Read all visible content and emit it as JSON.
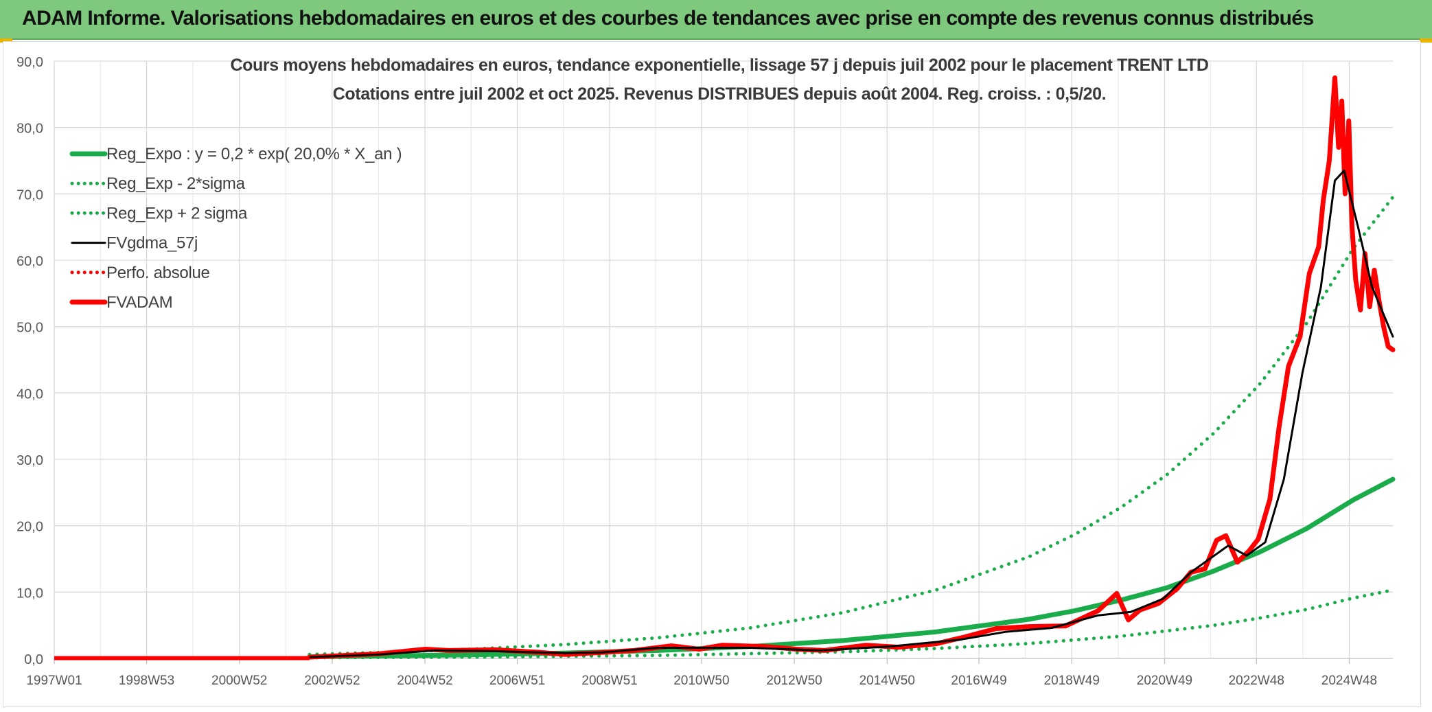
{
  "banner": {
    "title": "ADAM Informe. Valorisations hebdomadaires en euros et des courbes de tendances avec prise en compte des revenus connus distribués",
    "color": "#7fc97f"
  },
  "chart_data": {
    "type": "line",
    "title_line1": "Cours moyens hebdomadaires en euros, tendance exponentielle, lissage 57 j depuis juil 2002 pour le placement TRENT LTD",
    "title_line2": "Cotations entre juil 2002  et oct 2025. Revenus DISTRIBUES depuis août 2004. Reg. croiss. : 0,5/20.",
    "xlabel": "",
    "ylabel": "",
    "ylim": [
      0,
      90
    ],
    "xlim": [
      1997.0,
      2025.85
    ],
    "grid": true,
    "legend_position": "top-left",
    "y_ticks": [
      "0,0",
      "10,0",
      "20,0",
      "30,0",
      "40,0",
      "50,0",
      "60,0",
      "70,0",
      "80,0",
      "90,0"
    ],
    "x_ticks": [
      {
        "label": "1997W01",
        "year": 1997.0
      },
      {
        "label": "1998W53",
        "year": 1998.99
      },
      {
        "label": "2000W52",
        "year": 2000.99
      },
      {
        "label": "2002W52",
        "year": 2002.99
      },
      {
        "label": "2004W52",
        "year": 2004.99
      },
      {
        "label": "2006W51",
        "year": 2006.98
      },
      {
        "label": "2008W51",
        "year": 2008.97
      },
      {
        "label": "2010W50",
        "year": 2010.95
      },
      {
        "label": "2012W50",
        "year": 2012.95
      },
      {
        "label": "2014W50",
        "year": 2014.95
      },
      {
        "label": "2016W49",
        "year": 2016.93
      },
      {
        "label": "2018W49",
        "year": 2018.93
      },
      {
        "label": "2020W49",
        "year": 2020.93
      },
      {
        "label": "2022W48",
        "year": 2022.91
      },
      {
        "label": "2024W48",
        "year": 2024.91
      }
    ],
    "legend": [
      {
        "name": "Reg_Expo : y = 0,2 * exp( 20,0% *  X_an )",
        "color": "#1aab4b",
        "style": "solid-thick"
      },
      {
        "name": "Reg_Exp - 2*sigma",
        "color": "#1aab4b",
        "style": "dotted"
      },
      {
        "name": "Reg_Exp + 2 sigma",
        "color": "#1aab4b",
        "style": "dotted"
      },
      {
        "name": "FVgdma_57j",
        "color": "#000000",
        "style": "solid"
      },
      {
        "name": "Perfo. absolue",
        "color": "#ff0000",
        "style": "dotted"
      },
      {
        "name": "FVADAM",
        "color": "#ff0000",
        "style": "solid-thick"
      }
    ],
    "series": [
      {
        "name": "Reg_Expo : y = 0,2 * exp( 20,0% *  X_an )",
        "color": "#1aab4b",
        "x": [
          2002.5,
          2004,
          2006,
          2008,
          2010,
          2012,
          2014,
          2016,
          2018,
          2019,
          2020,
          2021,
          2022,
          2023,
          2024,
          2025,
          2025.85
        ],
        "y": [
          0.25,
          0.37,
          0.55,
          0.82,
          1.2,
          1.8,
          2.7,
          4.0,
          5.9,
          7.2,
          8.8,
          10.7,
          13.2,
          16.1,
          19.6,
          23.9,
          27.0
        ]
      },
      {
        "name": "Reg_Exp - 2*sigma",
        "color": "#1aab4b",
        "x": [
          2002.5,
          2006,
          2010,
          2014,
          2016,
          2018,
          2020,
          2022,
          2023,
          2024,
          2025,
          2025.85
        ],
        "y": [
          0.1,
          0.2,
          0.46,
          1.0,
          1.5,
          2.25,
          3.35,
          5.0,
          6.1,
          7.4,
          9.1,
          10.3
        ]
      },
      {
        "name": "Reg_Exp + 2 sigma",
        "color": "#1aab4b",
        "x": [
          2002.5,
          2004,
          2006,
          2008,
          2010,
          2012,
          2014,
          2016,
          2018,
          2019,
          2020,
          2021,
          2022,
          2023,
          2024,
          2025,
          2025.85
        ],
        "y": [
          0.6,
          0.9,
          1.4,
          2.1,
          3.1,
          4.6,
          6.9,
          10.3,
          15.3,
          18.7,
          22.8,
          27.8,
          34.0,
          41.5,
          50.6,
          61.8,
          69.5
        ]
      },
      {
        "name": "FVgdma_57j",
        "color": "#000000",
        "x": [
          2002.5,
          2004,
          2005.2,
          2006.5,
          2008,
          2008.8,
          2010,
          2010.8,
          2012,
          2013.5,
          2015,
          2016.5,
          2017.5,
          2018.5,
          2019.5,
          2020.2,
          2020.9,
          2021.5,
          2022.3,
          2022.7,
          2023.1,
          2023.5,
          2023.9,
          2024.3,
          2024.6,
          2024.8,
          2025.1,
          2025.4,
          2025.85
        ],
        "y": [
          0.2,
          0.6,
          1.2,
          1.1,
          0.8,
          0.9,
          1.6,
          1.6,
          1.6,
          1.2,
          1.8,
          2.8,
          4.0,
          4.6,
          6.5,
          7.0,
          9.0,
          13.0,
          17.0,
          15.5,
          17.5,
          27.0,
          43.0,
          56.0,
          72.0,
          73.5,
          65.0,
          56.0,
          48.5
        ]
      },
      {
        "name": "FVADAM",
        "color": "#ff0000",
        "x": [
          2002.5,
          2004,
          2005.0,
          2005.5,
          2006.5,
          2007.5,
          2008.0,
          2008.8,
          2009.5,
          2010.3,
          2010.9,
          2011.4,
          2012.3,
          2013.0,
          2013.6,
          2014.5,
          2015.2,
          2016.0,
          2016.6,
          2017.3,
          2018.0,
          2018.8,
          2019.5,
          2019.9,
          2020.15,
          2020.4,
          2020.8,
          2021.2,
          2021.5,
          2021.8,
          2022.05,
          2022.25,
          2022.5,
          2022.75,
          2022.95,
          2023.2,
          2023.4,
          2023.6,
          2023.85,
          2024.05,
          2024.25,
          2024.35,
          2024.48,
          2024.6,
          2024.68,
          2024.75,
          2024.82,
          2024.9,
          2024.97,
          2025.05,
          2025.15,
          2025.25,
          2025.35,
          2025.45,
          2025.55,
          2025.65,
          2025.75,
          2025.85
        ],
        "y": [
          0.2,
          0.7,
          1.4,
          1.2,
          1.3,
          0.9,
          0.6,
          0.9,
          1.2,
          1.9,
          1.4,
          2.0,
          1.8,
          1.4,
          1.2,
          2.0,
          1.7,
          2.2,
          3.2,
          4.5,
          4.8,
          4.9,
          7.2,
          9.8,
          5.8,
          7.3,
          8.3,
          10.5,
          13.0,
          13.5,
          17.8,
          18.5,
          14.5,
          16.2,
          18.0,
          24.0,
          35.0,
          44.0,
          48.5,
          58.0,
          62.0,
          69.0,
          75.0,
          87.5,
          77.0,
          84.0,
          70.0,
          81.0,
          65.0,
          57.0,
          52.5,
          61.0,
          53.0,
          58.5,
          54.0,
          50.0,
          47.0,
          46.5
        ]
      }
    ]
  }
}
